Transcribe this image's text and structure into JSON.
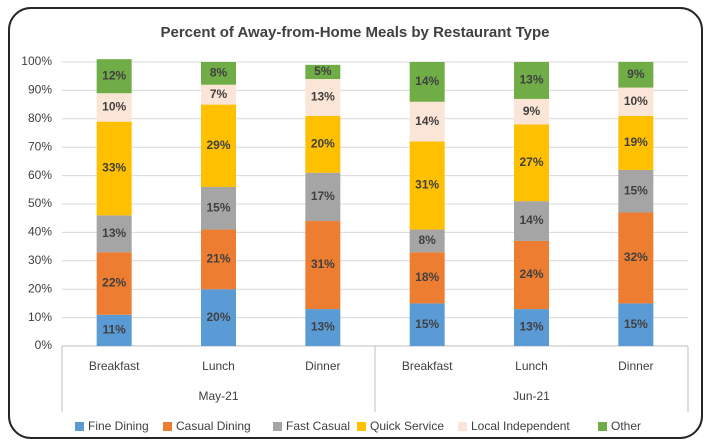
{
  "chart_data": {
    "type": "stacked-bar",
    "title": "Percent of Away-from-Home Meals by Restaurant Type",
    "categories": [
      "Breakfast",
      "Lunch",
      "Dinner",
      "Breakfast",
      "Lunch",
      "Dinner"
    ],
    "category_groups": [
      "May-21",
      "Jun-21"
    ],
    "ylim": [
      0,
      100
    ],
    "yticks": [
      {
        "value": 0,
        "label": "0%"
      },
      {
        "value": 10,
        "label": "10%"
      },
      {
        "value": 20,
        "label": "20%"
      },
      {
        "value": 30,
        "label": "30%"
      },
      {
        "value": 40,
        "label": "40%"
      },
      {
        "value": 50,
        "label": "50%"
      },
      {
        "value": 60,
        "label": "60%"
      },
      {
        "value": 70,
        "label": "70%"
      },
      {
        "value": 80,
        "label": "80%"
      },
      {
        "value": 90,
        "label": "90%"
      },
      {
        "value": 100,
        "label": "100%"
      }
    ],
    "grid": true,
    "legend": "bottom",
    "series": [
      {
        "name": "Fine Dining",
        "color": "#5b9bd5",
        "values": [
          11,
          20,
          13,
          15,
          13,
          15
        ],
        "value_labels": [
          "11%",
          "20%",
          "13%",
          "15%",
          "13%",
          "15%"
        ]
      },
      {
        "name": "Casual Dining",
        "color": "#ed7d31",
        "values": [
          22,
          21,
          31,
          18,
          24,
          32
        ],
        "value_labels": [
          "22%",
          "21%",
          "31%",
          "18%",
          "24%",
          "32%"
        ]
      },
      {
        "name": "Fast Casual",
        "color": "#a5a5a5",
        "values": [
          13,
          15,
          17,
          8,
          14,
          15
        ],
        "value_labels": [
          "13%",
          "15%",
          "17%",
          "8%",
          "14%",
          "15%"
        ]
      },
      {
        "name": "Quick Service",
        "color": "#ffc000",
        "values": [
          33,
          29,
          20,
          31,
          27,
          19
        ],
        "value_labels": [
          "33%",
          "29%",
          "20%",
          "31%",
          "27%",
          "19%"
        ]
      },
      {
        "name": "Local Independent",
        "color": "#fbe5d6",
        "values": [
          10,
          7,
          13,
          14,
          9,
          10
        ],
        "value_labels": [
          "10%",
          "7%",
          "13%",
          "14%",
          "9%",
          "10%"
        ]
      },
      {
        "name": "Other",
        "color": "#70ad47",
        "values": [
          12,
          8,
          5,
          14,
          13,
          9
        ],
        "value_labels": [
          "12%",
          "8%",
          "5%",
          "14%",
          "13%",
          "9%"
        ]
      }
    ]
  }
}
